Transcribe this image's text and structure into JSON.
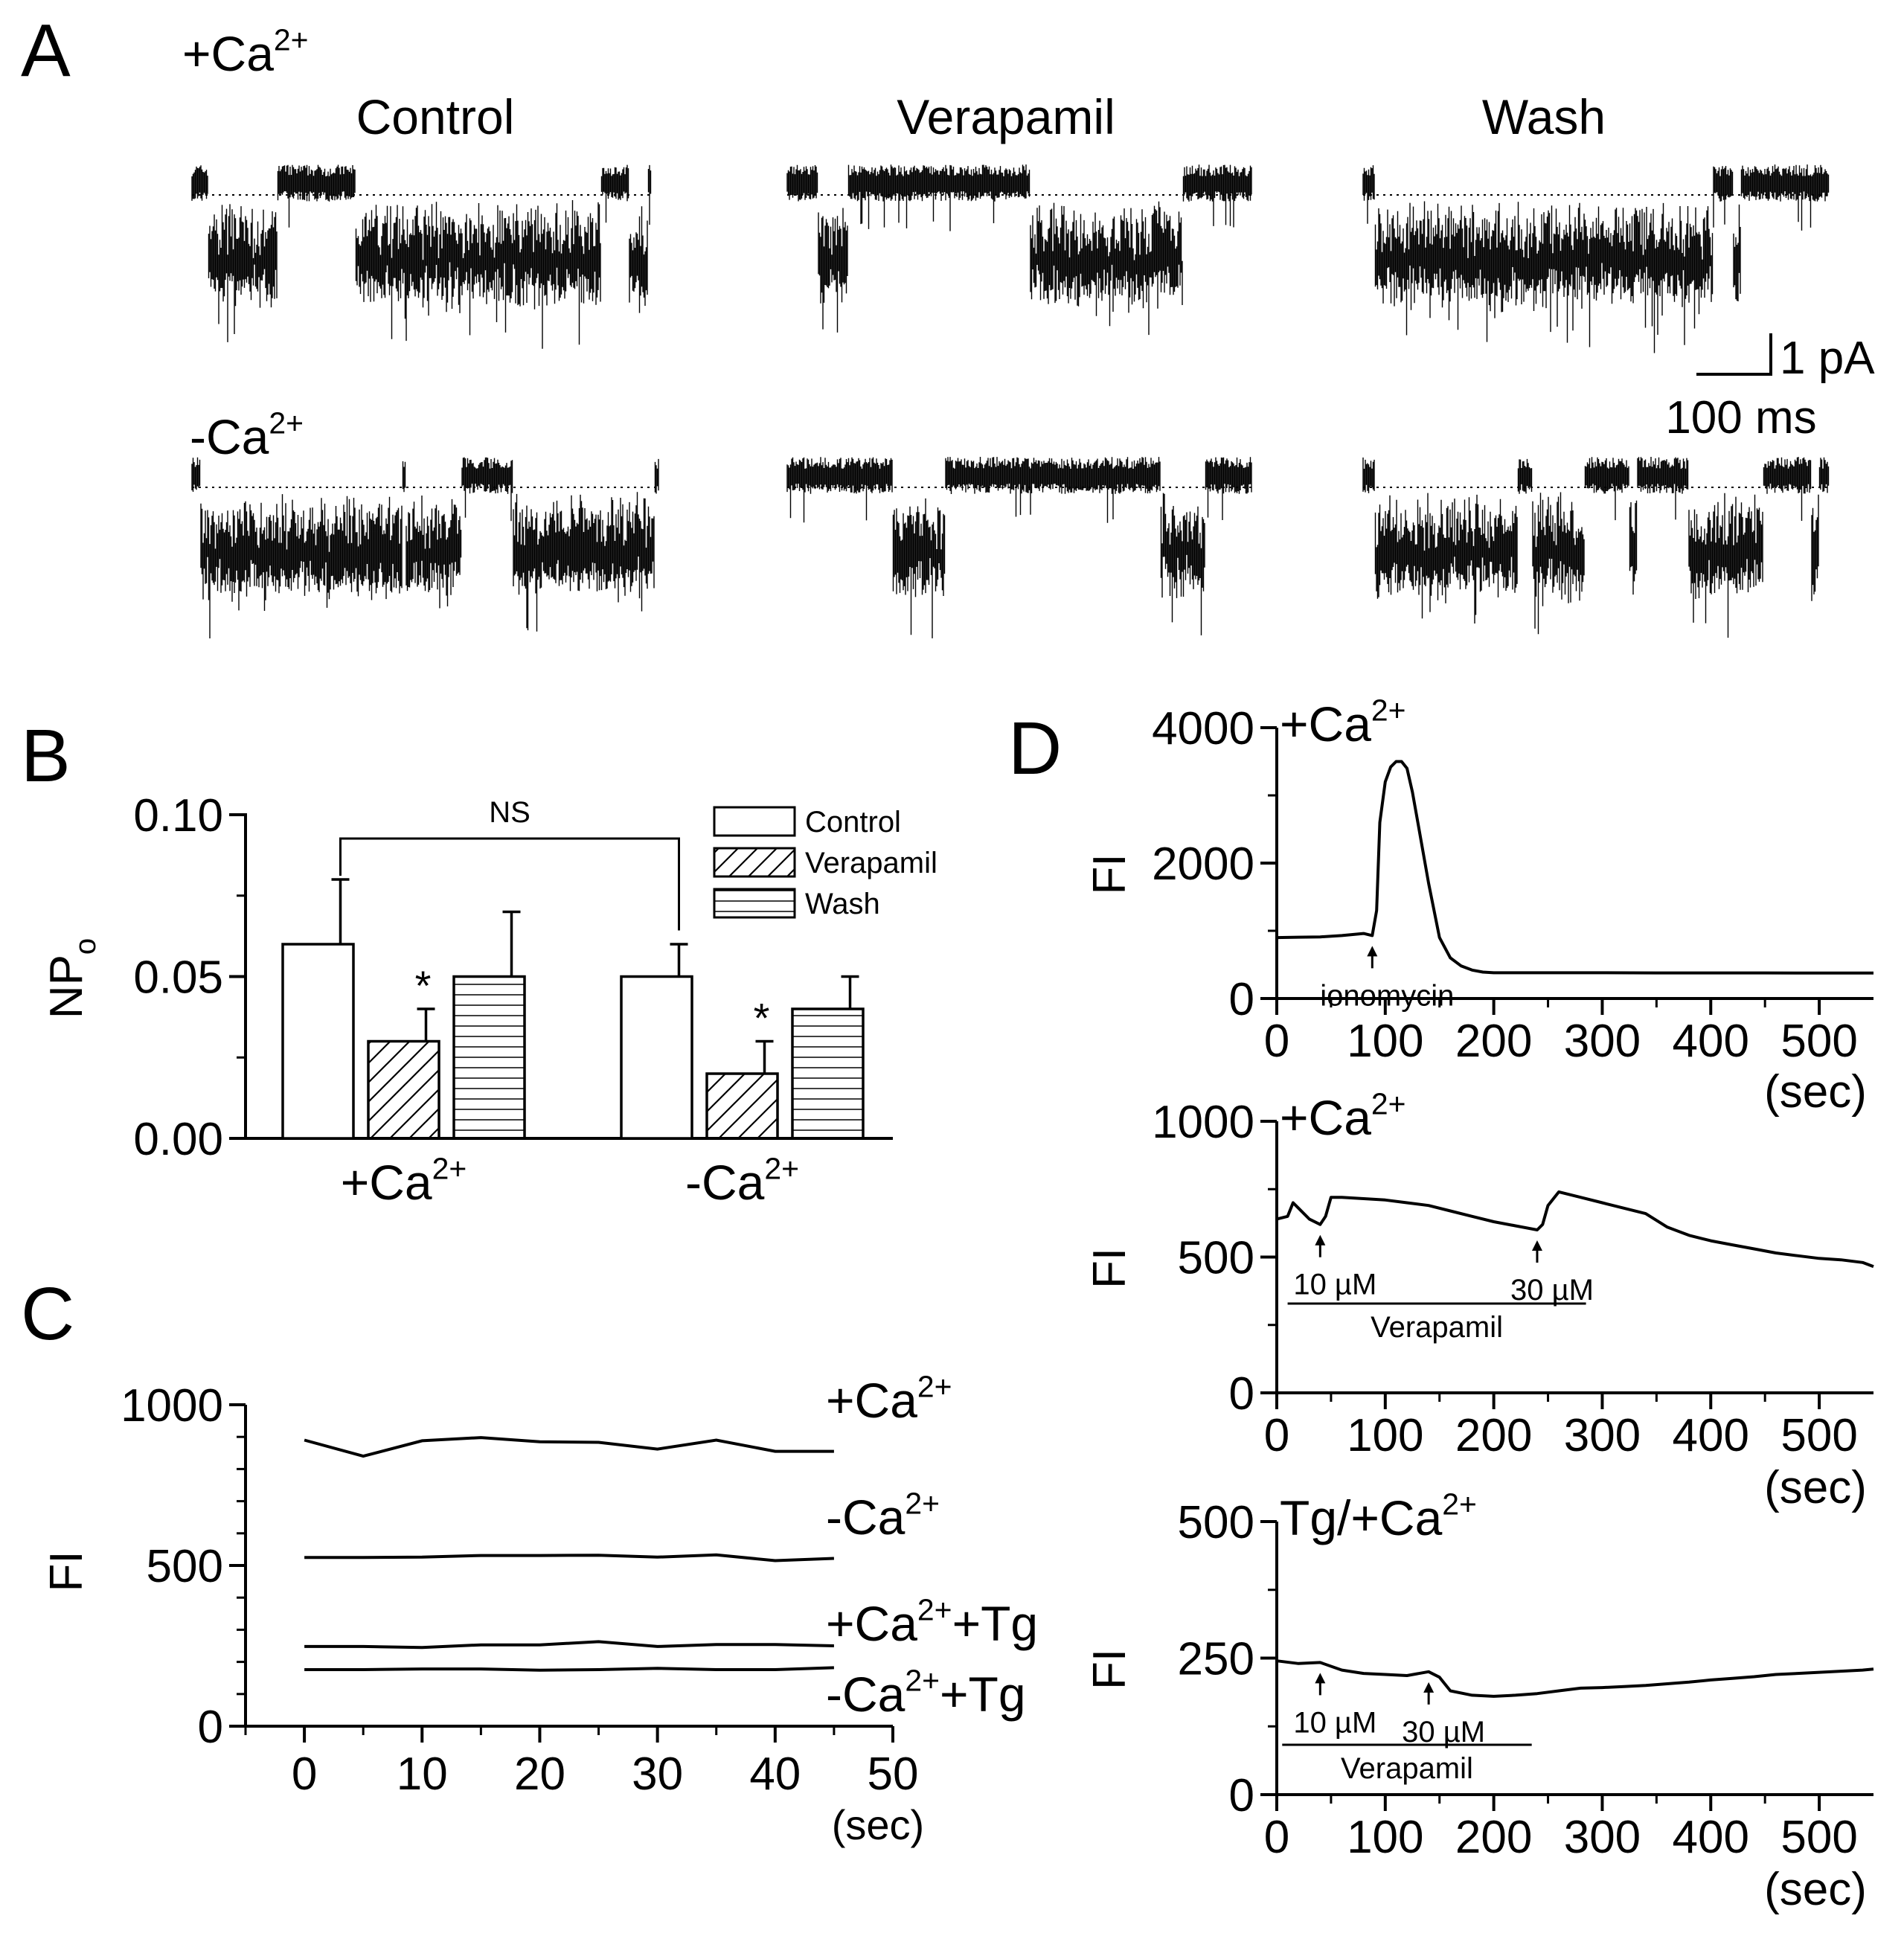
{
  "panels": {
    "A": {
      "label": "A",
      "row_labels": [
        {
          "text": "+Ca",
          "sup": "2+"
        },
        {
          "text": "-Ca",
          "sup": "2+"
        }
      ],
      "condition_titles": [
        "Control",
        "Verapamil",
        "Wash"
      ],
      "scale_bar": {
        "current": "1 pA",
        "time": "100 ms"
      }
    },
    "B": {
      "label": "B"
    },
    "C": {
      "label": "C"
    },
    "D": {
      "label": "D"
    }
  },
  "chart_data": [
    {
      "panel": "B",
      "type": "bar",
      "ylabel": "NP",
      "ylabel_sub": "o",
      "ylim": [
        0,
        0.1
      ],
      "yticks": [
        "0.00",
        "0.05",
        "0.10"
      ],
      "group_labels": [
        {
          "text": "+Ca",
          "sup": "2+"
        },
        {
          "text": "-Ca",
          "sup": "2+"
        }
      ],
      "series": [
        {
          "name": "Control",
          "pattern": "none",
          "values": [
            0.06,
            0.05
          ],
          "errors": [
            0.02,
            0.01
          ]
        },
        {
          "name": "Verapamil",
          "pattern": "diagonal",
          "values": [
            0.03,
            0.02
          ],
          "errors": [
            0.01,
            0.01
          ]
        },
        {
          "name": "Wash",
          "pattern": "horizontal",
          "values": [
            0.05,
            0.04
          ],
          "errors": [
            0.02,
            0.01
          ]
        }
      ],
      "significance_marks": [
        "*",
        "*"
      ],
      "comparison_label": "NS"
    },
    {
      "panel": "C",
      "type": "line",
      "ylabel": "FI",
      "xlabel": "(sec)",
      "xlim": [
        -5,
        50
      ],
      "ylim": [
        0,
        1000
      ],
      "xticks": [
        0,
        10,
        20,
        30,
        40,
        50
      ],
      "yticks": [
        0,
        500,
        1000
      ],
      "x": [
        0,
        5,
        10,
        15,
        20,
        25,
        30,
        35,
        40,
        45
      ],
      "series": [
        {
          "label": "+Ca",
          "label_sup": "2+",
          "label_suffix": "",
          "values": [
            890,
            840,
            888,
            898,
            885,
            883,
            862,
            890,
            855,
            855
          ]
        },
        {
          "label": "-Ca",
          "label_sup": "2+",
          "label_suffix": "",
          "values": [
            525,
            525,
            526,
            531,
            531,
            532,
            526,
            533,
            515,
            522
          ]
        },
        {
          "label": "+Ca",
          "label_sup": "2+",
          "label_suffix": "+Tg",
          "values": [
            248,
            248,
            245,
            253,
            253,
            263,
            248,
            254,
            254,
            250
          ]
        },
        {
          "label": "-Ca",
          "label_sup": "2+",
          "label_suffix": "+Tg",
          "values": [
            176,
            176,
            178,
            178,
            174,
            176,
            180,
            176,
            176,
            182
          ]
        }
      ]
    },
    {
      "panel": "D-top",
      "type": "line",
      "title": "+Ca",
      "title_sup": "2+",
      "ylabel": "FI",
      "xlabel": "(sec)",
      "xlim": [
        0,
        550
      ],
      "ylim": [
        0,
        4000
      ],
      "xticks": [
        0,
        100,
        200,
        300,
        400,
        500
      ],
      "yticks": [
        0,
        2000,
        4000
      ],
      "x": [
        0,
        20,
        40,
        60,
        80,
        88,
        92,
        95,
        100,
        105,
        110,
        115,
        120,
        125,
        130,
        140,
        150,
        160,
        170,
        180,
        190,
        200,
        250,
        300,
        350,
        400,
        450,
        500,
        550
      ],
      "values": [
        900,
        905,
        910,
        930,
        960,
        930,
        1300,
        2600,
        3200,
        3420,
        3500,
        3500,
        3400,
        3050,
        2600,
        1700,
        900,
        600,
        480,
        420,
        390,
        380,
        380,
        380,
        378,
        378,
        378,
        376,
        376
      ],
      "annotations": [
        {
          "text": "ionomycin",
          "x": 88
        }
      ]
    },
    {
      "panel": "D-middle",
      "type": "line",
      "title": "+Ca",
      "title_sup": "2+",
      "ylabel": "FI",
      "xlabel": "(sec)",
      "xlim": [
        0,
        550
      ],
      "ylim": [
        0,
        1000
      ],
      "xticks": [
        0,
        100,
        200,
        300,
        400,
        500
      ],
      "yticks": [
        0,
        500,
        1000
      ],
      "x": [
        0,
        10,
        15,
        20,
        30,
        40,
        45,
        50,
        60,
        80,
        100,
        120,
        140,
        160,
        180,
        200,
        220,
        240,
        245,
        250,
        260,
        280,
        300,
        320,
        340,
        360,
        380,
        400,
        420,
        440,
        460,
        480,
        500,
        520,
        540,
        550
      ],
      "values": [
        640,
        650,
        700,
        680,
        640,
        620,
        650,
        720,
        720,
        715,
        710,
        700,
        690,
        670,
        650,
        630,
        615,
        600,
        620,
        690,
        740,
        720,
        700,
        680,
        660,
        610,
        580,
        560,
        545,
        530,
        515,
        505,
        495,
        490,
        480,
        465
      ],
      "annotations": [
        {
          "text": "10 µM",
          "x": 40
        },
        {
          "text": "30 µM",
          "x": 240
        }
      ],
      "bar_label": "Verapamil",
      "bar_range": [
        10,
        285
      ]
    },
    {
      "panel": "D-bottom",
      "type": "line",
      "title": "Tg/+Ca",
      "title_sup": "2+",
      "ylabel": "FI",
      "xlabel": "(sec)",
      "xlim": [
        0,
        550
      ],
      "ylim": [
        0,
        500
      ],
      "xticks": [
        0,
        100,
        200,
        300,
        400,
        500
      ],
      "yticks": [
        0,
        250,
        500
      ],
      "x": [
        0,
        20,
        40,
        60,
        80,
        100,
        120,
        140,
        150,
        160,
        180,
        200,
        220,
        240,
        260,
        280,
        300,
        320,
        340,
        360,
        380,
        400,
        420,
        440,
        460,
        480,
        500,
        520,
        540,
        550
      ],
      "values": [
        245,
        240,
        242,
        228,
        222,
        220,
        218,
        225,
        215,
        190,
        182,
        180,
        182,
        185,
        190,
        195,
        196,
        198,
        200,
        203,
        206,
        210,
        213,
        216,
        220,
        222,
        224,
        226,
        228,
        230
      ],
      "annotations": [
        {
          "text": "10 µM",
          "x": 40
        },
        {
          "text": "30 µM",
          "x": 140
        }
      ],
      "bar_label": "Verapamil",
      "bar_range": [
        5,
        235
      ]
    }
  ]
}
